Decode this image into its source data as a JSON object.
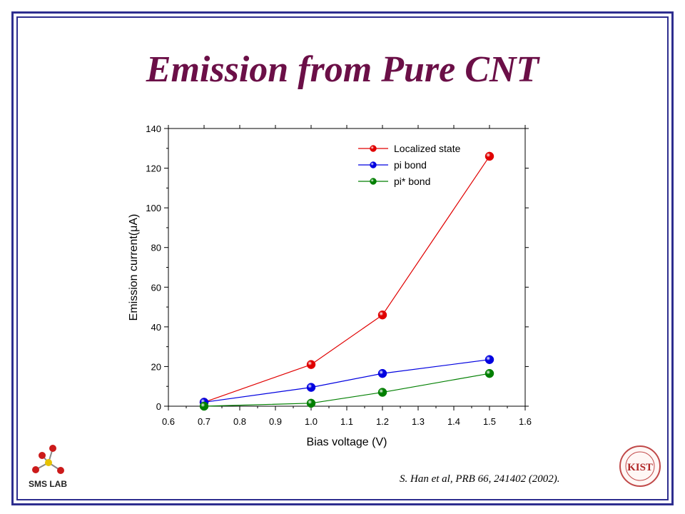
{
  "slide": {
    "title": "Emission from Pure CNT",
    "citation": "S. Han et al, PRB 66, 241402 (2002).",
    "logo_left_text": "SMS LAB",
    "logo_right_text": "KIST"
  },
  "chart_data": {
    "type": "line",
    "title": "",
    "xlabel": "Bias voltage (V)",
    "ylabel": "Emission current(μA)",
    "xlim": [
      0.6,
      1.6
    ],
    "ylim": [
      0,
      140
    ],
    "xticks": [
      0.6,
      0.7,
      0.8,
      0.9,
      1.0,
      1.1,
      1.2,
      1.3,
      1.4,
      1.5,
      1.6
    ],
    "xtick_labels": [
      "0.6",
      "0.7",
      "0.8",
      "0.9",
      "1.0",
      "1.1",
      "1.2",
      "1.3",
      "1.4",
      "1.5",
      "1.6"
    ],
    "yticks": [
      0,
      20,
      40,
      60,
      80,
      100,
      120,
      140
    ],
    "ytick_labels": [
      "0",
      "20",
      "40",
      "60",
      "80",
      "100",
      "120",
      "140"
    ],
    "grid": false,
    "legend_position": "top-right",
    "x": [
      0.7,
      1.0,
      1.2,
      1.5
    ],
    "series": [
      {
        "name": "Localized state",
        "color": "#e00000",
        "values": [
          2,
          21,
          46,
          126
        ]
      },
      {
        "name": "pi bond",
        "color": "#0000e0",
        "values": [
          2,
          9.5,
          16.5,
          23.5
        ]
      },
      {
        "name": "pi* bond",
        "color": "#007f00",
        "values": [
          0,
          1.5,
          7,
          16.5
        ]
      }
    ]
  }
}
